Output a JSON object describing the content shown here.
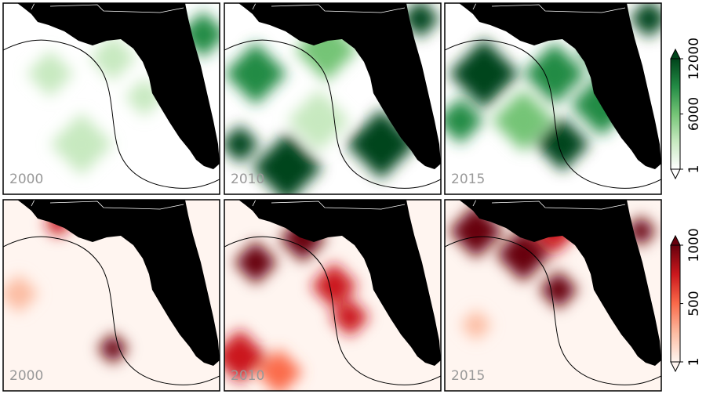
{
  "rows": [
    {
      "colorbar": {
        "lim": [
          1,
          12000
        ],
        "ticks": [
          1,
          6000,
          12000
        ],
        "colors": [
          "#ffffff",
          "#c7e9c0",
          "#74c476",
          "#238b45",
          "#00441b"
        ]
      },
      "panels": [
        {
          "year": "2000"
        },
        {
          "year": "2010"
        },
        {
          "year": "2015"
        }
      ]
    },
    {
      "colorbar": {
        "lim": [
          1,
          1000
        ],
        "ticks": [
          1,
          500,
          1000
        ],
        "colors": [
          "#fff5f0",
          "#fcbba1",
          "#fb6a4a",
          "#cb181d",
          "#67000d"
        ]
      },
      "panels": [
        {
          "year": "2000"
        },
        {
          "year": "2010"
        },
        {
          "year": "2015"
        }
      ]
    }
  ]
}
